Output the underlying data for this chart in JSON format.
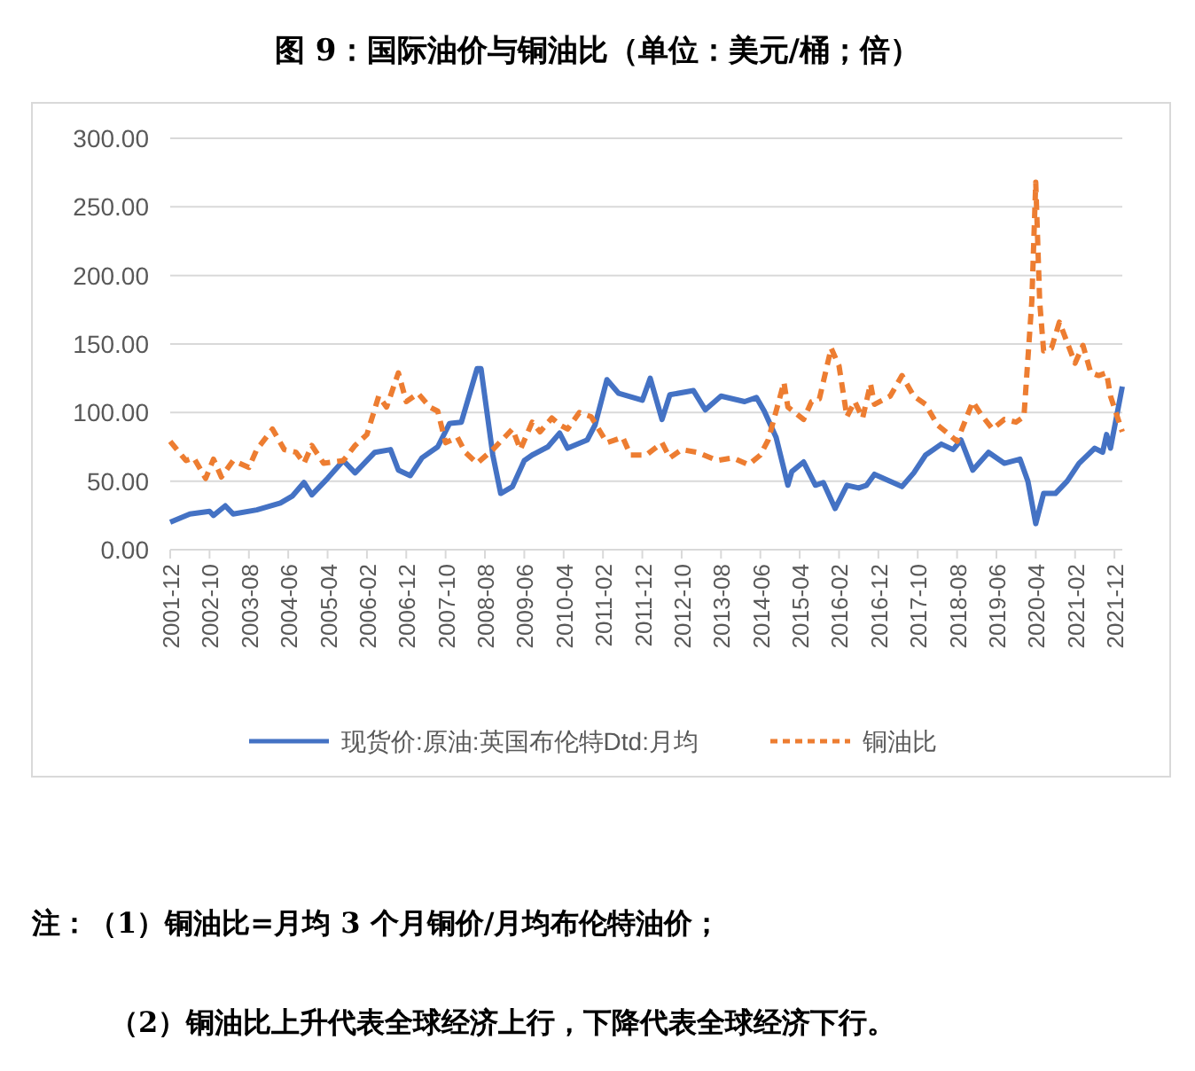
{
  "chart_data": {
    "type": "line",
    "title": "图 9：国际油价与铜油比（单位：美元/桶；倍）",
    "xlim": [
      "2001-12",
      "2022-02"
    ],
    "xticks": [
      "2001-12",
      "2002-10",
      "2003-08",
      "2004-06",
      "2005-04",
      "2006-02",
      "2006-12",
      "2007-10",
      "2008-08",
      "2009-06",
      "2010-04",
      "2011-02",
      "2011-12",
      "2012-10",
      "2013-08",
      "2014-06",
      "2015-04",
      "2016-02",
      "2016-12",
      "2017-10",
      "2018-08",
      "2019-06",
      "2020-04",
      "2021-02",
      "2021-12"
    ],
    "ylim": [
      0,
      300
    ],
    "yticks": [
      {
        "value": 0,
        "label": "0.00"
      },
      {
        "value": 50,
        "label": "50.00"
      },
      {
        "value": 100,
        "label": "100.00"
      },
      {
        "value": 150,
        "label": "150.00"
      },
      {
        "value": 200,
        "label": "200.00"
      },
      {
        "value": 250,
        "label": "250.00"
      },
      {
        "value": 300,
        "label": "300.00"
      }
    ],
    "grid": "y",
    "legend": "bottom",
    "series": [
      {
        "name": "现货价:原油:英国布伦特Dtd:月均",
        "color": "#4472c4",
        "line_style": "solid",
        "x": [
          "2001-12",
          "2002-05",
          "2002-10",
          "2002-11",
          "2003-02",
          "2003-04",
          "2003-10",
          "2004-04",
          "2004-07",
          "2004-10",
          "2004-12",
          "2005-04",
          "2005-08",
          "2005-11",
          "2006-04",
          "2006-08",
          "2006-10",
          "2007-01",
          "2007-04",
          "2007-08",
          "2007-11",
          "2008-02",
          "2008-06",
          "2008-07",
          "2008-10",
          "2008-12",
          "2009-03",
          "2009-06",
          "2009-08",
          "2009-12",
          "2010-03",
          "2010-05",
          "2010-10",
          "2010-12",
          "2011-03",
          "2011-06",
          "2011-12",
          "2012-02",
          "2012-05",
          "2012-07",
          "2013-01",
          "2013-04",
          "2013-08",
          "2014-02",
          "2014-05",
          "2014-07",
          "2014-10",
          "2015-01",
          "2015-02",
          "2015-05",
          "2015-08",
          "2015-10",
          "2016-01",
          "2016-04",
          "2016-07",
          "2016-09",
          "2016-11",
          "2017-06",
          "2017-09",
          "2017-12",
          "2018-04",
          "2018-07",
          "2018-09",
          "2018-12",
          "2019-04",
          "2019-08",
          "2019-12",
          "2020-02",
          "2020-04",
          "2020-06",
          "2020-09",
          "2020-12",
          "2021-03",
          "2021-07",
          "2021-09",
          "2021-10",
          "2021-11",
          "2022-02"
        ],
        "values": [
          20,
          26,
          28,
          25,
          32,
          26,
          29,
          34,
          39,
          49,
          40,
          52,
          65,
          56,
          71,
          73,
          58,
          54,
          67,
          75,
          92,
          93,
          132,
          132,
          69,
          41,
          46,
          65,
          69,
          75,
          85,
          74,
          80,
          91,
          124,
          114,
          109,
          125,
          95,
          113,
          116,
          102,
          112,
          108,
          111,
          101,
          82,
          47,
          57,
          64,
          47,
          49,
          30,
          47,
          45,
          47,
          55,
          46,
          56,
          69,
          77,
          73,
          80,
          58,
          71,
          63,
          66,
          50,
          19,
          41,
          41,
          50,
          63,
          74,
          71,
          84,
          74,
          119
        ]
      },
      {
        "name": "铜油比",
        "color": "#ed7d31",
        "line_style": "dashed",
        "x": [
          "2001-12",
          "2002-04",
          "2002-06",
          "2002-09",
          "2002-11",
          "2003-01",
          "2003-04",
          "2003-08",
          "2003-10",
          "2004-02",
          "2004-05",
          "2004-08",
          "2004-10",
          "2004-12",
          "2005-03",
          "2005-08",
          "2005-11",
          "2006-02",
          "2006-05",
          "2006-07",
          "2006-10",
          "2006-12",
          "2007-03",
          "2007-06",
          "2007-08",
          "2007-10",
          "2008-01",
          "2008-03",
          "2008-06",
          "2008-10",
          "2009-03",
          "2009-05",
          "2009-08",
          "2009-10",
          "2010-01",
          "2010-03",
          "2010-05",
          "2010-08",
          "2010-11",
          "2011-03",
          "2011-07",
          "2011-09",
          "2012-01",
          "2012-05",
          "2012-07",
          "2012-10",
          "2013-02",
          "2013-07",
          "2013-11",
          "2014-03",
          "2014-06",
          "2014-08",
          "2014-12",
          "2015-01",
          "2015-05",
          "2015-07",
          "2015-09",
          "2015-12",
          "2016-02",
          "2016-04",
          "2016-06",
          "2016-08",
          "2016-10",
          "2016-11",
          "2017-03",
          "2017-06",
          "2017-09",
          "2017-12",
          "2018-03",
          "2018-06",
          "2018-08",
          "2018-12",
          "2019-02",
          "2019-05",
          "2019-08",
          "2019-11",
          "2020-01",
          "2020-03",
          "2020-04",
          "2020-05",
          "2020-06",
          "2020-08",
          "2020-10",
          "2020-12",
          "2021-02",
          "2021-04",
          "2021-06",
          "2021-08",
          "2021-10",
          "2021-11",
          "2022-02"
        ],
        "values": [
          79,
          65,
          67,
          52,
          66,
          53,
          65,
          60,
          73,
          88,
          73,
          71,
          63,
          76,
          63,
          65,
          76,
          84,
          112,
          104,
          129,
          108,
          114,
          104,
          101,
          78,
          82,
          71,
          63,
          73,
          88,
          73,
          93,
          86,
          96,
          91,
          88,
          100,
          97,
          78,
          82,
          69,
          69,
          78,
          67,
          73,
          71,
          65,
          67,
          62,
          69,
          80,
          122,
          104,
          95,
          108,
          110,
          147,
          134,
          97,
          108,
          96,
          121,
          106,
          112,
          127,
          112,
          106,
          91,
          84,
          79,
          108,
          99,
          88,
          95,
          93,
          97,
          181,
          268,
          181,
          145,
          147,
          166,
          151,
          136,
          149,
          129,
          127,
          129,
          112,
          86
        ]
      }
    ],
    "annotations": [
      "注：（1）铜油比=月均 3 个月铜价/月均布伦特油价；",
      "（2）铜油比上升代表全球经济上行，下降代表全球经济下行。"
    ]
  }
}
